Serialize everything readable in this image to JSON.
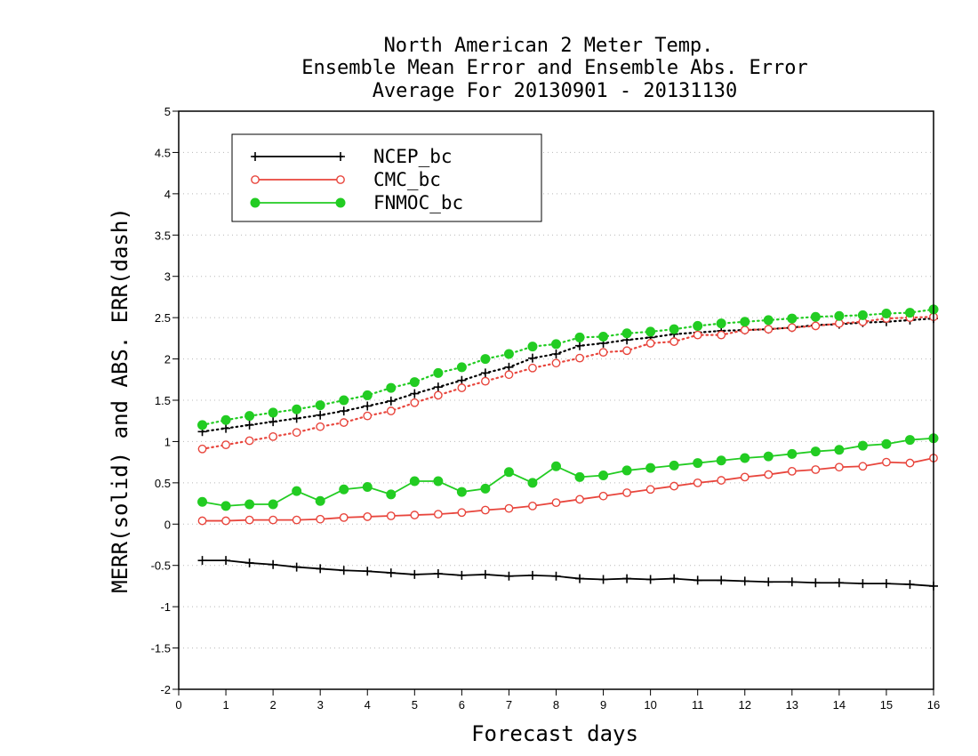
{
  "chart_data": {
    "type": "line",
    "title_lines": [
      "North American 2 Meter Temp.",
      "Ensemble Mean Error and Ensemble Abs. Error",
      "Average For 20130901 - 20131130"
    ],
    "xlabel": "Forecast days",
    "ylabel": "MERR(solid) and ABS. ERR(dash)",
    "xlim": [
      0,
      16
    ],
    "ylim": [
      -2,
      5
    ],
    "xticks": [
      "0",
      "1",
      "2",
      "3",
      "4",
      "5",
      "6",
      "7",
      "8",
      "9",
      "10",
      "11",
      "12",
      "13",
      "14",
      "15",
      "16"
    ],
    "yticks": [
      "-2",
      "-1.5",
      "-1",
      "-0.5",
      "0",
      "0.5",
      "1",
      "1.5",
      "2",
      "2.5",
      "3",
      "3.5",
      "4",
      "4.5",
      "5"
    ],
    "grid": "horizontal dotted",
    "legend_position": "top-left",
    "x": [
      0.5,
      1,
      1.5,
      2,
      2.5,
      3,
      3.5,
      4,
      4.5,
      5,
      5.5,
      6,
      6.5,
      7,
      7.5,
      8,
      8.5,
      9,
      9.5,
      10,
      10.5,
      11,
      11.5,
      12,
      12.5,
      13,
      13.5,
      14,
      14.5,
      15,
      15.5,
      16
    ],
    "series": [
      {
        "name": "NCEP_bc",
        "color": "#000000",
        "marker": "plus",
        "merr": [
          -0.44,
          -0.44,
          -0.47,
          -0.49,
          -0.52,
          -0.54,
          -0.56,
          -0.57,
          -0.59,
          -0.61,
          -0.6,
          -0.62,
          -0.61,
          -0.63,
          -0.62,
          -0.63,
          -0.66,
          -0.67,
          -0.66,
          -0.67,
          -0.66,
          -0.68,
          -0.68,
          -0.69,
          -0.7,
          -0.7,
          -0.71,
          -0.71,
          -0.72,
          -0.72,
          -0.73,
          -0.75
        ],
        "abs_err": [
          1.12,
          1.16,
          1.2,
          1.24,
          1.28,
          1.32,
          1.37,
          1.43,
          1.49,
          1.58,
          1.66,
          1.74,
          1.83,
          1.9,
          2.01,
          2.06,
          2.16,
          2.19,
          2.23,
          2.26,
          2.3,
          2.32,
          2.34,
          2.35,
          2.36,
          2.38,
          2.41,
          2.42,
          2.44,
          2.45,
          2.47,
          2.49
        ]
      },
      {
        "name": "CMC_bc",
        "color": "#e8453c",
        "marker": "open-circle",
        "merr": [
          0.04,
          0.04,
          0.05,
          0.05,
          0.05,
          0.06,
          0.08,
          0.09,
          0.1,
          0.11,
          0.12,
          0.14,
          0.17,
          0.19,
          0.22,
          0.26,
          0.3,
          0.34,
          0.38,
          0.42,
          0.46,
          0.5,
          0.53,
          0.57,
          0.6,
          0.64,
          0.66,
          0.69,
          0.7,
          0.75,
          0.74,
          0.8
        ],
        "abs_err": [
          0.91,
          0.96,
          1.01,
          1.06,
          1.11,
          1.18,
          1.23,
          1.31,
          1.37,
          1.47,
          1.56,
          1.65,
          1.73,
          1.81,
          1.89,
          1.95,
          2.01,
          2.08,
          2.1,
          2.19,
          2.21,
          2.29,
          2.29,
          2.35,
          2.36,
          2.38,
          2.4,
          2.43,
          2.45,
          2.49,
          2.5,
          2.51
        ]
      },
      {
        "name": "FNMOC_bc",
        "color": "#22cc22",
        "marker": "filled-circle",
        "merr": [
          0.27,
          0.22,
          0.24,
          0.24,
          0.4,
          0.28,
          0.42,
          0.45,
          0.36,
          0.52,
          0.52,
          0.39,
          0.43,
          0.63,
          0.5,
          0.7,
          0.57,
          0.59,
          0.65,
          0.68,
          0.71,
          0.74,
          0.77,
          0.8,
          0.82,
          0.85,
          0.88,
          0.9,
          0.95,
          0.97,
          1.02,
          1.04
        ],
        "abs_err": [
          1.2,
          1.26,
          1.31,
          1.35,
          1.39,
          1.44,
          1.5,
          1.56,
          1.65,
          1.72,
          1.83,
          1.9,
          2.0,
          2.06,
          2.15,
          2.18,
          2.26,
          2.27,
          2.31,
          2.33,
          2.36,
          2.4,
          2.43,
          2.45,
          2.47,
          2.49,
          2.51,
          2.52,
          2.53,
          2.55,
          2.56,
          2.6
        ]
      }
    ]
  }
}
